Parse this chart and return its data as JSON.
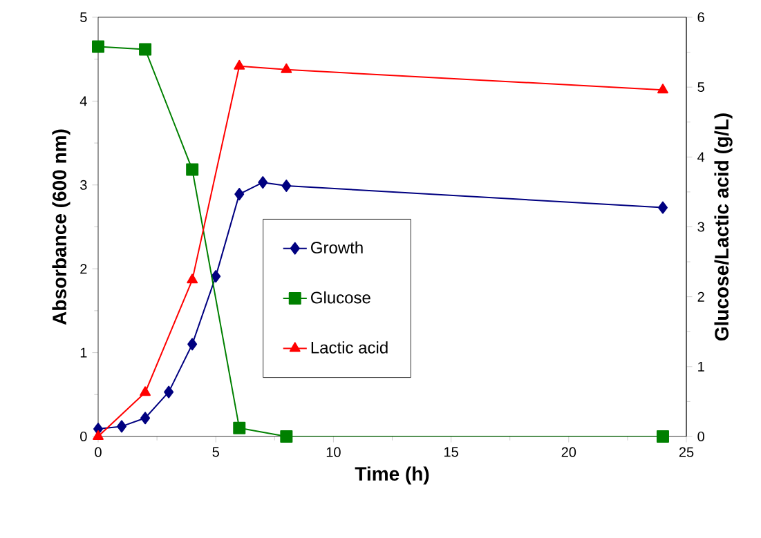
{
  "chart_data": {
    "type": "line",
    "xlabel": "Time (h)",
    "ylabel": "Absorbance (600 nm)",
    "y2label": "Glucose/Lactic acid (g/L)",
    "xlim": [
      0,
      25
    ],
    "xticks": [
      0,
      5,
      10,
      15,
      20,
      25
    ],
    "ylim": [
      0,
      5
    ],
    "yticks": [
      0,
      1,
      2,
      3,
      4,
      5
    ],
    "y2lim": [
      0,
      6
    ],
    "y2ticks": [
      0,
      1,
      2,
      3,
      4,
      5,
      6
    ],
    "legend": "center",
    "line_style": "solid",
    "series": [
      {
        "name": "Growth",
        "color": "#000080",
        "marker": "diamond",
        "x": [
          0,
          1,
          2,
          3,
          4,
          5,
          6,
          7,
          8,
          24
        ],
        "values": [
          0.09,
          0.12,
          0.22,
          0.53,
          1.1,
          1.91,
          2.89,
          3.03,
          2.99,
          2.73
        ]
      },
      {
        "name": "Glucose",
        "color": "#008000",
        "marker": "square",
        "axis": "y2",
        "x": [
          0,
          2,
          4,
          6,
          8,
          24
        ],
        "values": [
          5.58,
          5.54,
          3.82,
          0.12,
          0,
          0
        ]
      },
      {
        "name": "Lactic acid",
        "color": "#ff0000",
        "marker": "triangle",
        "axis": "y2",
        "x": [
          0,
          2,
          4,
          6,
          8,
          24
        ],
        "values": [
          0,
          0.63,
          2.24,
          5.3,
          5.25,
          4.96
        ]
      }
    ]
  }
}
